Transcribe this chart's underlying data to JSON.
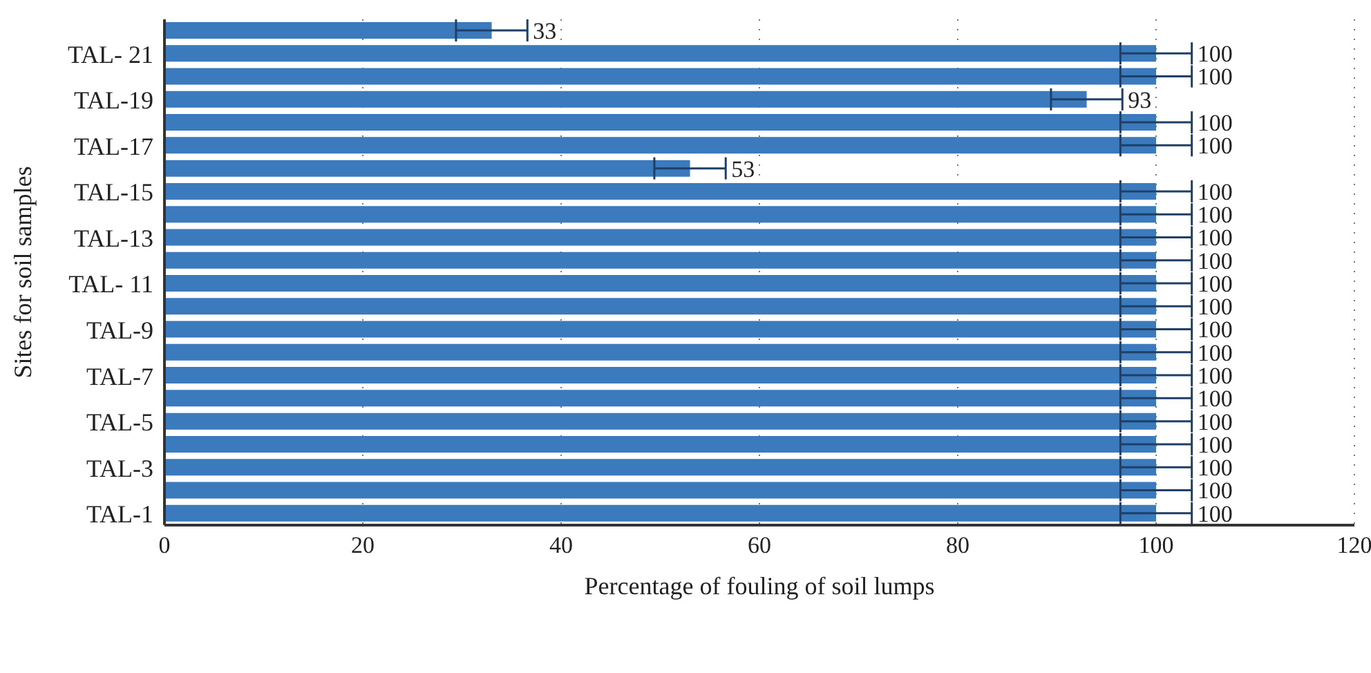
{
  "chart_data": {
    "type": "bar",
    "orientation": "horizontal",
    "xlabel": "Percentage of fouling of soil lumps",
    "ylabel": "Sites for soil samples",
    "categories": [
      null,
      "TAL- 21",
      null,
      "TAL-19",
      null,
      "TAL-17",
      null,
      "TAL-15",
      null,
      "TAL-13",
      null,
      "TAL- 11",
      null,
      "TAL-9",
      null,
      "TAL-7",
      null,
      "TAL-5",
      null,
      "TAL-3",
      null,
      "TAL-1"
    ],
    "values": [
      33,
      100,
      100,
      93,
      100,
      100,
      53,
      100,
      100,
      100,
      100,
      100,
      100,
      100,
      100,
      100,
      100,
      100,
      100,
      100,
      100,
      100
    ],
    "errors": [
      3.6,
      3.6,
      3.6,
      3.6,
      3.6,
      3.6,
      3.6,
      3.6,
      3.6,
      3.6,
      3.6,
      3.6,
      3.6,
      3.6,
      3.6,
      3.6,
      3.6,
      3.6,
      3.6,
      3.6,
      3.6,
      3.6
    ],
    "color": "#3a7abd",
    "xlim": [
      0,
      120
    ],
    "xticks": [
      0,
      20,
      40,
      60,
      80,
      100,
      120
    ],
    "grid": "x",
    "data_labels": true
  }
}
